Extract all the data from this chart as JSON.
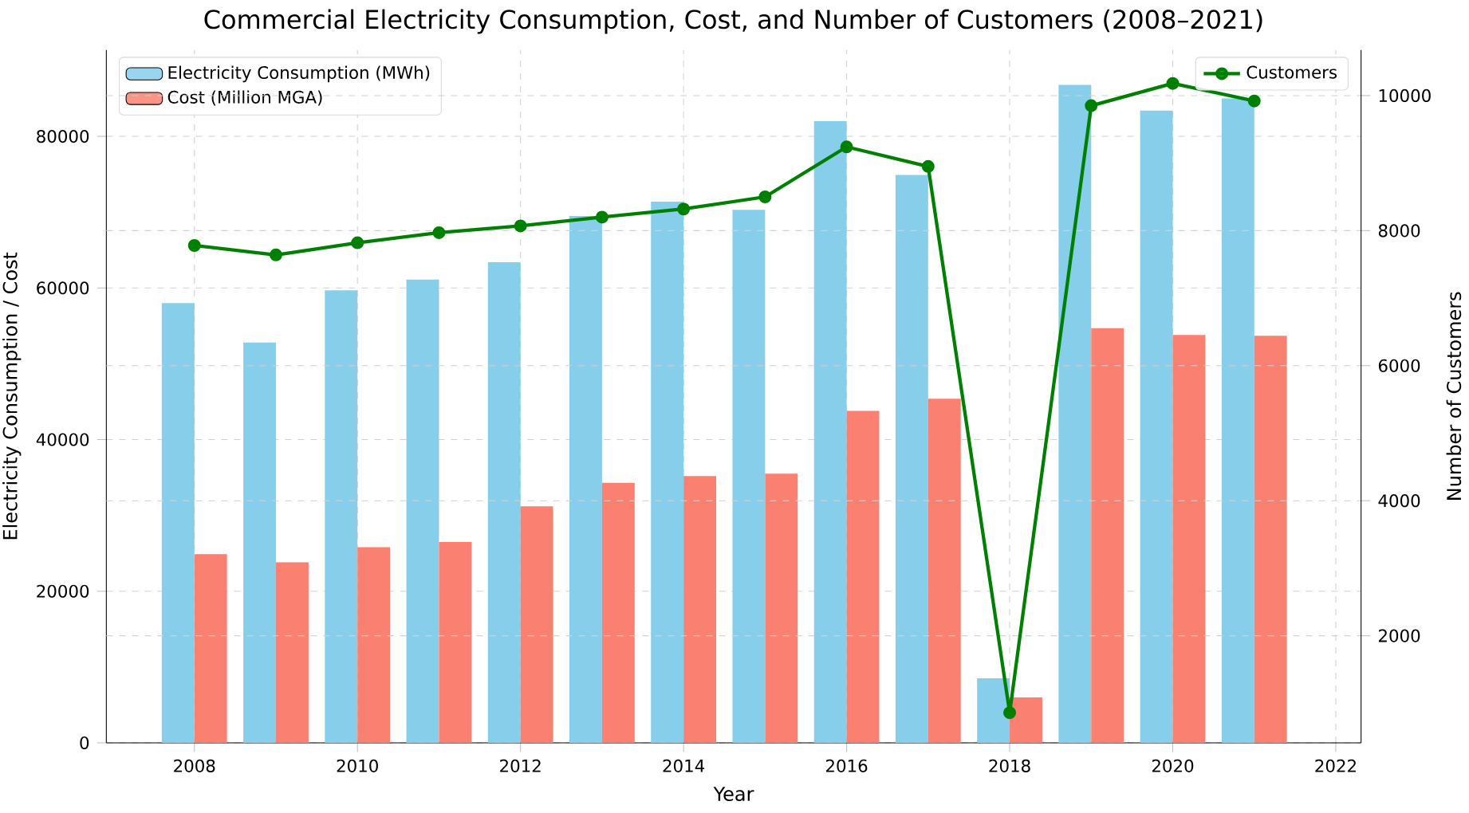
{
  "chart_data": {
    "type": "bar",
    "title": "Commercial Electricity Consumption, Cost, and Number of Customers (2008–2021)",
    "xlabel": "Year",
    "ylabel": "Electricity Consumption / Cost",
    "y2label": "Number of Customers",
    "x": [
      2008,
      2009,
      2010,
      2011,
      2012,
      2013,
      2014,
      2015,
      2016,
      2017,
      2018,
      2019,
      2020,
      2021
    ],
    "series": [
      {
        "name": "Electricity Consumption (MWh)",
        "color": "#87ceeb",
        "values": [
          58000,
          52800,
          59700,
          61100,
          63400,
          69500,
          71400,
          70300,
          82000,
          74900,
          8500,
          86800,
          83400,
          85000
        ]
      },
      {
        "name": "Cost (Million MGA)",
        "color": "#fa8072",
        "values": [
          24900,
          23800,
          25800,
          26500,
          31200,
          34300,
          35200,
          35500,
          43800,
          45400,
          6000,
          54700,
          53800,
          53700
        ]
      },
      {
        "name": "Customers",
        "color": "#008000",
        "type": "line",
        "axis": "y2",
        "marker": "circle",
        "values": [
          7780,
          7640,
          7820,
          7970,
          8070,
          8200,
          8320,
          8500,
          9240,
          8950,
          860,
          9850,
          10180,
          9920
        ]
      }
    ],
    "xlim": [
      2006.92,
      2022.31
    ],
    "xticks": [
      2008,
      2010,
      2012,
      2014,
      2016,
      2018,
      2020,
      2022
    ],
    "ylim": [
      0,
      91400
    ],
    "yticks": [
      0,
      20000,
      40000,
      60000,
      80000
    ],
    "y2lim": [
      414,
      10676
    ],
    "y2ticks": [
      2000,
      4000,
      6000,
      8000,
      10000
    ],
    "grid": true,
    "legend": "top left"
  }
}
